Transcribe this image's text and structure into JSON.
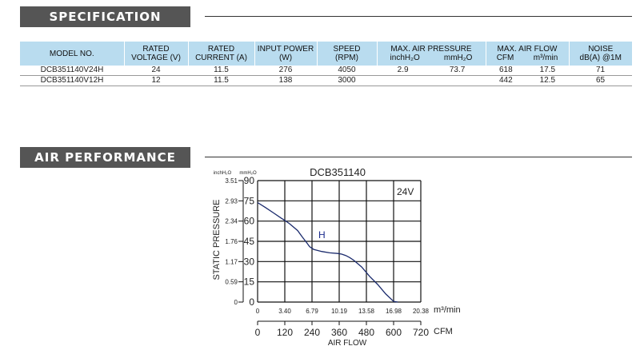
{
  "spec": {
    "title": "SPECIFICATION",
    "headers": {
      "model": "MODEL NO.",
      "voltage": [
        "RATED",
        "VOLTAGE (V)"
      ],
      "current": [
        "RATED",
        "CURRENT (A)"
      ],
      "power": [
        "INPUT POWER",
        "(W)"
      ],
      "speed": [
        "SPEED",
        "(RPM)"
      ],
      "pressure": "MAX. AIR PRESSURE",
      "pressure_units": [
        "inchH₂O",
        "mmH₂O"
      ],
      "flow": "MAX. AIR FLOW",
      "flow_units": [
        "CFM",
        "m³/min"
      ],
      "noise": [
        "NOISE",
        "dB(A) @1M"
      ]
    },
    "rows": [
      [
        "DCB351140V24H",
        "24",
        "11.5",
        "276",
        "4050",
        "2.9",
        "73.7",
        "618",
        "17.5",
        "71"
      ],
      [
        "DCB351140V12H",
        "12",
        "11.5",
        "138",
        "3000",
        "",
        "",
        "442",
        "12.5",
        "65"
      ]
    ]
  },
  "air": {
    "title": "AIR PERFORMANCE"
  },
  "chart_data": {
    "type": "line",
    "title": "DCB351140",
    "annotation": "24V",
    "series": [
      {
        "name": "H",
        "x": [
          0,
          1,
          2,
          3,
          3.4,
          4,
          5,
          5.6,
          6,
          6.5,
          7,
          8,
          9,
          10,
          10.5,
          11,
          11.5,
          12,
          13,
          14,
          15,
          16,
          16.98,
          17.5
        ],
        "y": [
          73.7,
          70,
          66,
          62,
          60.5,
          58,
          53,
          48,
          45,
          41,
          39,
          37.5,
          36.5,
          36,
          35.5,
          34.5,
          33,
          31,
          26,
          19,
          13,
          6,
          0.5,
          0
        ]
      }
    ],
    "xlabel": "AIR FLOW",
    "x_unit_m3": "m³/min",
    "x_unit_cfm": "CFM",
    "ylabel": "STATIC PRESSURE",
    "y_unit_inch": "inchH₂O",
    "y_unit_mm": "mmH₂O",
    "xlim": [
      0,
      20.38
    ],
    "ylim": [
      0,
      90
    ],
    "x_ticks_m3": [
      "0",
      "3.40",
      "6.79",
      "10.19",
      "13.58",
      "16.98",
      "20.38"
    ],
    "x_ticks_cfm": [
      "0",
      "120",
      "240",
      "360",
      "480",
      "600",
      "720"
    ],
    "y_ticks_mm": [
      "0",
      "15",
      "30",
      "45",
      "60",
      "75",
      "90"
    ],
    "y_ticks_inch": [
      "0",
      "0.59",
      "1.17",
      "1.76",
      "2.34",
      "2.93",
      "3.51"
    ],
    "grid": true,
    "line_color": "#1a2a6c"
  }
}
